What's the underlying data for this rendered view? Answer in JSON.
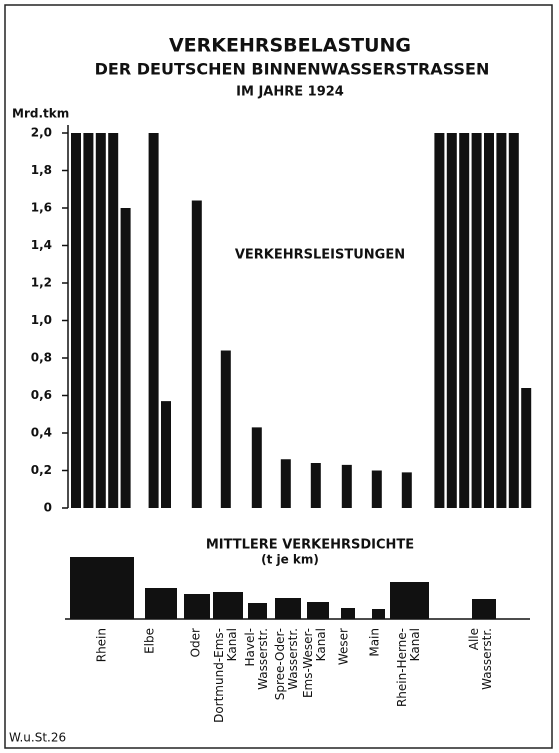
{
  "chart_data": [
    {
      "type": "bar",
      "title": "VERKEHRSBELASTUNG",
      "subtitle": "DER DEUTSCHEN BINNENWASSERSTRASSEN",
      "subtitle2": "IM JAHRE 1924",
      "y_label": "Mrd.tkm",
      "annotation": "VERKEHRSLEISTUNGEN",
      "source": "W.u.St.26",
      "categories": [
        "Rhein",
        "Elbe",
        "Oder",
        "Dortmund-Ems-Kanal",
        "Havel-Wasserstr.",
        "Spree-Oder-Wasserstr.",
        "Ems-Weser-Kanal",
        "Weser",
        "Main",
        "Rhein-Herne-Kanal",
        "Alle Wasserstr."
      ],
      "values": [
        [
          2.0,
          2.0,
          2.0,
          2.0,
          1.6
        ],
        [
          2.0,
          0.57
        ],
        [
          1.64
        ],
        [
          0.84
        ],
        [
          0.43
        ],
        [
          0.26
        ],
        [
          0.24
        ],
        [
          0.23
        ],
        [
          0.2
        ],
        [
          0.19
        ],
        [
          2.0,
          2.0,
          2.0,
          2.0,
          2.0,
          2.0,
          2.0,
          0.64
        ]
      ],
      "color": "#111111",
      "ylim": [
        0,
        2.0
      ],
      "yticks": [
        0,
        {
          "value": 0.2,
          "label": "0,2"
        },
        {
          "value": 0.4,
          "label": "0,4"
        },
        {
          "value": 0.6,
          "label": "0,6"
        },
        {
          "value": 0.8,
          "label": "0,8"
        },
        {
          "value": 1.0,
          "label": "1,0"
        },
        {
          "value": 1.2,
          "label": "1,2"
        },
        {
          "value": 1.4,
          "label": "1,4"
        },
        {
          "value": 1.6,
          "label": "1,6"
        },
        {
          "value": 1.8,
          "label": "1,8"
        },
        {
          "value": 2.0,
          "label": "2,0"
        }
      ]
    },
    {
      "type": "bar",
      "title": "MITTLERE VERKEHRSDICHTE",
      "subtitle": "(t je km)",
      "values": [
        62,
        31,
        25,
        27,
        16,
        21,
        17,
        11,
        10,
        37,
        20
      ],
      "color": "#111111",
      "ylim": [
        0,
        62
      ]
    }
  ]
}
